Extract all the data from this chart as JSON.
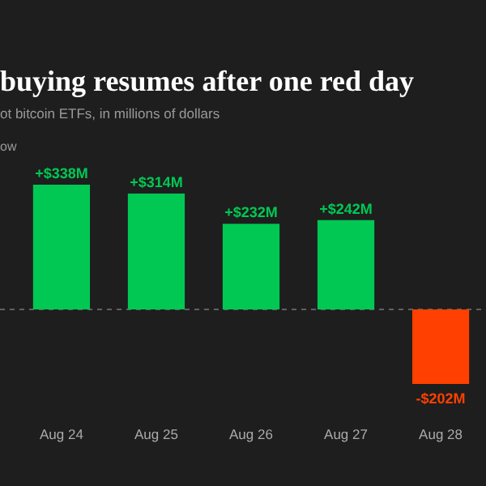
{
  "chart_data": {
    "type": "bar",
    "title": "buying resumes after one red day",
    "subtitle": "ot bitcoin ETFs, in millions of dollars",
    "annotations": [
      "ow"
    ],
    "categories": [
      "Aug 24",
      "Aug 25",
      "Aug 26",
      "Aug 27",
      "Aug 28"
    ],
    "values": [
      338,
      314,
      232,
      242,
      -202
    ],
    "colors": [
      "#00c853",
      "#00c853",
      "#00c853",
      "#00c853",
      "#ff4000"
    ],
    "value_labels": [
      "+$338M",
      "+$314M",
      "+$232M",
      "+$242M",
      "-$202M"
    ],
    "ref_lines": [
      {
        "axis": "y",
        "value": 0,
        "color": "#777777",
        "line_style": "dashed"
      }
    ]
  }
}
